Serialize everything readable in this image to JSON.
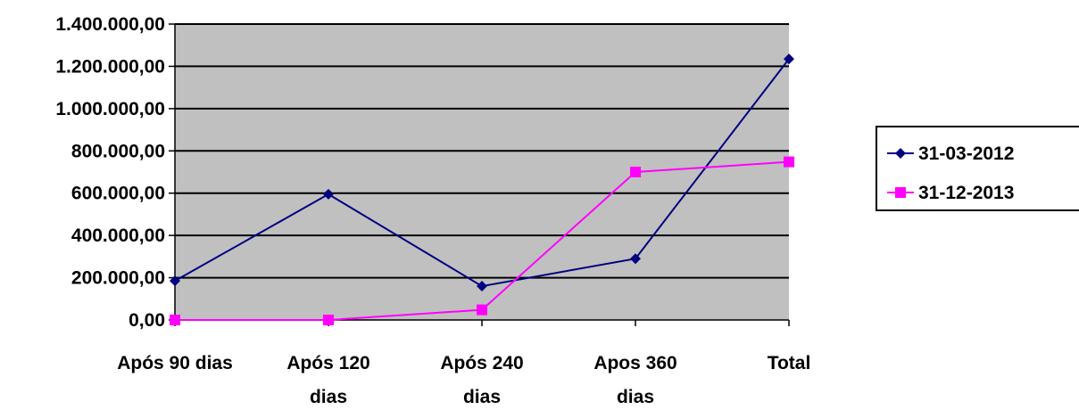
{
  "chart_data": {
    "type": "line",
    "title": "",
    "xlabel": "",
    "ylabel": "",
    "categories": [
      [
        "Após 90 dias"
      ],
      [
        "Após 120",
        "dias"
      ],
      [
        "Após 240",
        "dias"
      ],
      [
        "Apos 360",
        "dias"
      ],
      [
        "Total"
      ]
    ],
    "ylim": [
      0,
      1400000
    ],
    "ytick_values": [
      0,
      200000,
      400000,
      600000,
      800000,
      1000000,
      1200000,
      1400000
    ],
    "ytick_labels": [
      "0,00",
      "200.000,00",
      "400.000,00",
      "600.000,00",
      "800.000,00",
      "1.000.000,00",
      "1.200.000,00",
      "1.400.000,00"
    ],
    "grid": true,
    "legend_position": "right",
    "plot_background": "#c0c0c0",
    "series": [
      {
        "name": "31-03-2012",
        "color": "#000080",
        "marker": "diamond",
        "values": [
          185000,
          595000,
          160000,
          290000,
          1235000
        ]
      },
      {
        "name": "31-12-2013",
        "color": "#ff00ff",
        "marker": "square",
        "values": [
          0,
          0,
          48000,
          700000,
          748000
        ]
      }
    ]
  }
}
